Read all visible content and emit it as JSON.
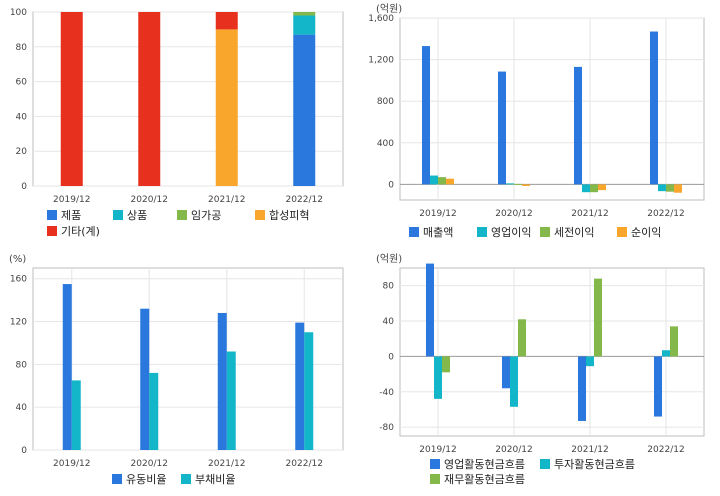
{
  "colors": {
    "blue": "#2a78de",
    "cyan": "#13b6c8",
    "green": "#84b84a",
    "orange": "#f8a62c",
    "red": "#e8301e",
    "grid": "#e6e6e6",
    "frame": "#bdbdbd"
  },
  "chart_data": [
    {
      "id": "composition",
      "type": "bar",
      "stacked": true,
      "unit": "",
      "categories": [
        "2019/12",
        "2020/12",
        "2021/12",
        "2022/12"
      ],
      "ylim": [
        0,
        100
      ],
      "yticks": [
        0,
        20,
        40,
        60,
        80,
        100
      ],
      "yticks_text": [
        "0",
        "20",
        "40",
        "60",
        "80",
        "100"
      ],
      "grid": true,
      "legend_position": "bottom",
      "series": [
        {
          "name": "제품",
          "color": "blue",
          "values": [
            0,
            0,
            0,
            87
          ]
        },
        {
          "name": "상품",
          "color": "cyan",
          "values": [
            0,
            0,
            0,
            11
          ]
        },
        {
          "name": "임가공",
          "color": "green",
          "values": [
            0,
            0,
            0,
            2
          ]
        },
        {
          "name": "합성피혁",
          "color": "orange",
          "values": [
            0,
            0,
            90,
            0
          ]
        },
        {
          "name": "기타(계)",
          "color": "red",
          "values": [
            100,
            100,
            10,
            0
          ]
        }
      ]
    },
    {
      "id": "income",
      "type": "bar",
      "unit": "(억원)",
      "categories": [
        "2019/12",
        "2020/12",
        "2021/12",
        "2022/12"
      ],
      "ylim": [
        -150,
        1600
      ],
      "yticks": [
        0,
        400,
        800,
        1200,
        1600
      ],
      "yticks_text": [
        "0",
        "400",
        "800",
        "1,200",
        "1,600"
      ],
      "grid": true,
      "legend_position": "bottom",
      "series": [
        {
          "name": "매출액",
          "color": "blue",
          "values": [
            1330,
            1085,
            1130,
            1470
          ]
        },
        {
          "name": "영업이익",
          "color": "cyan",
          "values": [
            85,
            10,
            -75,
            -65
          ]
        },
        {
          "name": "세전이익",
          "color": "green",
          "values": [
            70,
            5,
            -75,
            -70
          ]
        },
        {
          "name": "순이익",
          "color": "orange",
          "values": [
            55,
            -15,
            -55,
            -80
          ]
        }
      ]
    },
    {
      "id": "ratios",
      "type": "bar",
      "unit": "(%)",
      "categories": [
        "2019/12",
        "2020/12",
        "2021/12",
        "2022/12"
      ],
      "ylim": [
        0,
        170
      ],
      "yticks": [
        0,
        40,
        80,
        120,
        160
      ],
      "yticks_text": [
        "0",
        "40",
        "80",
        "120",
        "160"
      ],
      "grid": true,
      "legend_position": "bottom",
      "series": [
        {
          "name": "유동비율",
          "color": "blue",
          "values": [
            155,
            132,
            128,
            119
          ]
        },
        {
          "name": "부채비율",
          "color": "cyan",
          "values": [
            65,
            72,
            92,
            110
          ]
        }
      ]
    },
    {
      "id": "cashflow",
      "type": "bar",
      "unit": "(억원)",
      "categories": [
        "2019/12",
        "2020/12",
        "2021/12",
        "2022/12"
      ],
      "ylim": [
        -90,
        100
      ],
      "yticks": [
        -80,
        -40,
        0,
        40,
        80
      ],
      "yticks_text": [
        "-80",
        "-40",
        "0",
        "40",
        "80"
      ],
      "grid": true,
      "legend_position": "bottom",
      "series": [
        {
          "name": "영업활동현금흐름",
          "color": "blue",
          "values": [
            105,
            -36,
            -73,
            -68
          ]
        },
        {
          "name": "투자활동현금흐름",
          "color": "cyan",
          "values": [
            -48,
            -57,
            -11,
            7
          ]
        },
        {
          "name": "재무활동현금흐름",
          "color": "green",
          "values": [
            -18,
            42,
            88,
            34
          ]
        }
      ]
    }
  ]
}
